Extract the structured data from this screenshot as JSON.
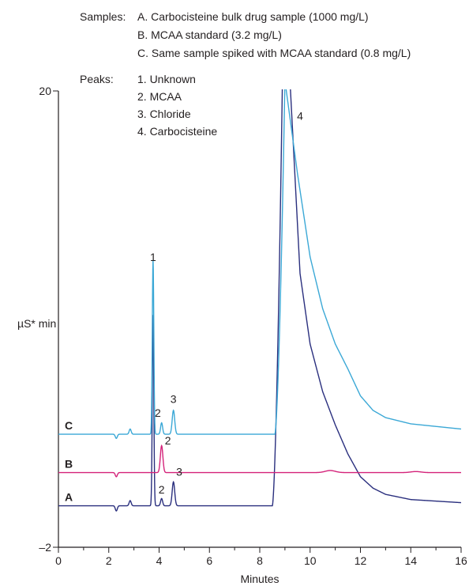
{
  "chart_data": {
    "type": "line",
    "xlabel": "Minutes",
    "ylabel": "µS* min",
    "xlim": [
      0,
      16
    ],
    "ylim": [
      -2,
      20
    ],
    "xticks": [
      "0",
      "2",
      "4",
      "6",
      "8",
      "10",
      "12",
      "14",
      "16"
    ],
    "yticks": [
      "20",
      "–2"
    ],
    "legend": {
      "samples_heading": "Samples:",
      "samples": [
        "A. Carbocisteine bulk drug sample (1000 mg/L)",
        "B. MCAA standard (3.2 mg/L)",
        "C. Same sample spiked with MCAA standard (0.8 mg/L)"
      ],
      "peaks_heading": "Peaks:",
      "peaks": [
        "1. Unknown",
        "2. MCAA",
        "3. Chloride",
        "4. Carbocisteine"
      ]
    },
    "series": [
      {
        "label": "A",
        "color": "#2a2f7e",
        "baseline": 0.0,
        "peaks": [
          {
            "rt": 2.3,
            "h": -0.25,
            "w": 0.04
          },
          {
            "rt": 2.85,
            "h": 0.25,
            "w": 0.04
          },
          {
            "rt": 3.76,
            "h": 9.2,
            "w": 0.03
          },
          {
            "rt": 4.1,
            "h": 0.35,
            "w": 0.04
          },
          {
            "rt": 4.57,
            "h": 1.15,
            "w": 0.05
          }
        ],
        "matrix": {
          "start": 8.5,
          "plateau_end": 9.2,
          "tail_start": 9.2,
          "tail": [
            [
              9.2,
              20.5
            ],
            [
              9.6,
              11.2
            ],
            [
              10.0,
              7.8
            ],
            [
              10.5,
              5.5
            ],
            [
              11.0,
              3.9
            ],
            [
              11.5,
              2.5
            ],
            [
              12.0,
              1.4
            ],
            [
              12.5,
              0.85
            ],
            [
              13.0,
              0.55
            ],
            [
              14.0,
              0.3
            ],
            [
              16.0,
              0.15
            ]
          ]
        },
        "annotations": [
          {
            "text": "2",
            "x": 4.1,
            "y": 0.6
          },
          {
            "text": "3",
            "x": 4.8,
            "y": 1.45
          },
          {
            "text": "1",
            "x": 3.76,
            "y": 11.8
          }
        ]
      },
      {
        "label": "B",
        "color": "#d4237a",
        "baseline": 1.6,
        "peaks": [
          {
            "rt": 2.3,
            "h": -0.2,
            "w": 0.04
          },
          {
            "rt": 4.1,
            "h": 1.3,
            "w": 0.05
          },
          {
            "rt": 10.8,
            "h": 0.1,
            "w": 0.2
          },
          {
            "rt": 14.2,
            "h": 0.05,
            "w": 0.2
          }
        ],
        "annotations": [
          {
            "text": "2",
            "x": 4.35,
            "y": 2.95
          }
        ]
      },
      {
        "label": "C",
        "color": "#3ba8d6",
        "baseline": 3.45,
        "peaks": [
          {
            "rt": 2.3,
            "h": -0.2,
            "w": 0.04
          },
          {
            "rt": 2.85,
            "h": 0.25,
            "w": 0.04
          },
          {
            "rt": 3.76,
            "h": 8.4,
            "w": 0.03
          },
          {
            "rt": 4.1,
            "h": 0.55,
            "w": 0.04
          },
          {
            "rt": 4.57,
            "h": 1.15,
            "w": 0.05
          }
        ],
        "matrix": {
          "start": 8.6,
          "plateau_end": 9.0,
          "tail_start": 9.0,
          "tail": [
            [
              9.0,
              20.5
            ],
            [
              9.5,
              16.0
            ],
            [
              10.0,
              12.0
            ],
            [
              10.5,
              9.5
            ],
            [
              11.0,
              7.8
            ],
            [
              11.5,
              6.6
            ],
            [
              12.0,
              5.3
            ],
            [
              12.5,
              4.6
            ],
            [
              13.0,
              4.25
            ],
            [
              14.0,
              3.95
            ],
            [
              16.0,
              3.7
            ]
          ]
        },
        "annotations": [
          {
            "text": "2",
            "x": 3.95,
            "y": 4.3
          },
          {
            "text": "3",
            "x": 4.57,
            "y": 4.95
          },
          {
            "text": "4",
            "x": 9.6,
            "y": 18.6
          }
        ]
      }
    ]
  }
}
